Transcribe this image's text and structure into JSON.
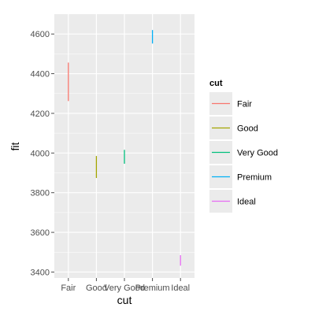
{
  "chart_data": {
    "type": "errorbar",
    "xlabel": "cut",
    "ylabel": "fit",
    "categories": [
      "Fair",
      "Good",
      "Very Good",
      "Premium",
      "Ideal"
    ],
    "ylim": [
      3370,
      4700
    ],
    "yticks": [
      3400,
      3600,
      3800,
      4000,
      4200,
      4400,
      4600
    ],
    "series": [
      {
        "name": "Fair",
        "ymin": 4262,
        "ymax": 4456,
        "color": "#F8766D"
      },
      {
        "name": "Good",
        "ymin": 3874,
        "ymax": 3985,
        "color": "#A3A500"
      },
      {
        "name": "Very Good",
        "ymin": 3946,
        "ymax": 4016,
        "color": "#00BF7D"
      },
      {
        "name": "Premium",
        "ymin": 4552,
        "ymax": 4620,
        "color": "#00B0F6"
      },
      {
        "name": "Ideal",
        "ymin": 3432,
        "ymax": 3485,
        "color": "#E76BF3"
      }
    ],
    "legend": {
      "title": "cut",
      "position": "right"
    },
    "grid": true,
    "panel_background": "#EBEBEB",
    "grid_color": "#FFFFFF"
  }
}
